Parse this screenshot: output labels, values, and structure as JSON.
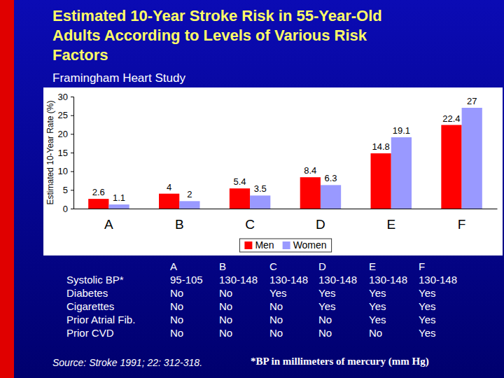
{
  "chart_data": {
    "type": "bar",
    "title": "Estimated 10-Year Stroke Risk in 55-Year-Old Adults According to Levels of Various Risk Factors",
    "subtitle": "Framingham Heart Study",
    "y_label": "Estimated 10-Year Rate (%)",
    "categories": [
      "A",
      "B",
      "C",
      "D",
      "E",
      "F"
    ],
    "series": [
      {
        "name": "Men",
        "color": "#ff0000",
        "values": [
          2.6,
          4,
          5.4,
          8.4,
          14.8,
          22.4
        ]
      },
      {
        "name": "Women",
        "color": "#9999ff",
        "values": [
          1.1,
          2,
          3.5,
          6.3,
          19.1,
          27
        ]
      }
    ],
    "ylim": [
      0,
      30
    ],
    "yticks": [
      0,
      5,
      10,
      15,
      20,
      25,
      30
    ],
    "data_labels": true,
    "legend": "bottom"
  },
  "table": {
    "columns": [
      "A",
      "B",
      "C",
      "D",
      "E",
      "F"
    ],
    "rows": [
      {
        "label": "Systolic BP*",
        "cells": [
          "95-105",
          "130-148",
          "130-148",
          "130-148",
          "130-148",
          "130-148"
        ]
      },
      {
        "label": "Diabetes",
        "cells": [
          "No",
          "No",
          "Yes",
          "Yes",
          "Yes",
          "Yes"
        ]
      },
      {
        "label": "Cigarettes",
        "cells": [
          "No",
          "No",
          "No",
          "Yes",
          "Yes",
          "Yes"
        ]
      },
      {
        "label": "Prior Atrial Fib.",
        "cells": [
          "No",
          "No",
          "No",
          "No",
          "Yes",
          "Yes"
        ]
      },
      {
        "label": "Prior CVD",
        "cells": [
          "No",
          "No",
          "No",
          "No",
          "No",
          "Yes"
        ]
      }
    ]
  },
  "source": "Source: Stroke 1991; 22: 312-318.",
  "footnote": "*BP in millimeters of mercury (mm Hg)"
}
